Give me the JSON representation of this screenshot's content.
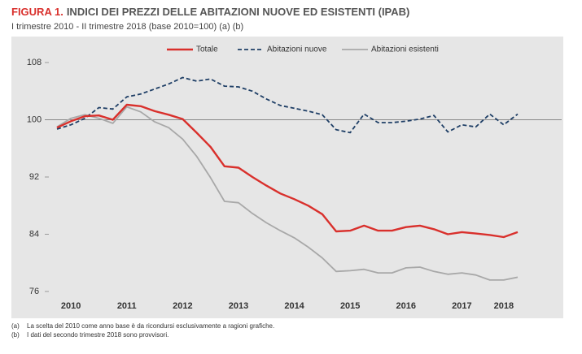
{
  "chart_data": {
    "type": "line",
    "title_prefix": "FIGURA 1.",
    "title": "INDICI DEI PREZZI DELLE ABITAZIONI NUOVE ED ESISTENTI (IPAB)",
    "subtitle": "I trimestre 2010 - II trimestre 2018 (base 2010=100) (a) (b)",
    "categories": [
      null,
      "2010",
      null,
      null,
      null,
      "2011",
      null,
      null,
      null,
      "2012",
      null,
      null,
      null,
      "2013",
      null,
      null,
      null,
      "2014",
      null,
      null,
      null,
      "2015",
      null,
      null,
      null,
      "2016",
      null,
      null,
      null,
      "2017",
      null,
      null,
      "2018",
      null
    ],
    "series": [
      {
        "name": "Totale",
        "color": "#d9302c",
        "style": "solid",
        "values": [
          98.9,
          99.8,
          100.5,
          100.6,
          100.0,
          102.1,
          101.9,
          101.2,
          100.7,
          100.1,
          98.2,
          96.2,
          93.5,
          93.3,
          92.0,
          90.8,
          89.7,
          88.9,
          88.0,
          86.8,
          84.4,
          84.5,
          85.2,
          84.5,
          84.5,
          85.0,
          85.2,
          84.7,
          84.0,
          84.3,
          84.1,
          83.9,
          83.6,
          84.3
        ]
      },
      {
        "name": "Abitazioni nuove",
        "color": "#1f3f66",
        "style": "dashed",
        "values": [
          98.7,
          99.3,
          100.2,
          101.7,
          101.5,
          103.2,
          103.6,
          104.3,
          105.0,
          105.9,
          105.4,
          105.7,
          104.7,
          104.6,
          104.0,
          102.9,
          102.0,
          101.6,
          101.2,
          100.7,
          98.6,
          98.2,
          100.8,
          99.6,
          99.6,
          99.8,
          100.1,
          100.6,
          98.3,
          99.3,
          99.0,
          100.8,
          99.3,
          100.8
        ]
      },
      {
        "name": "Abitazioni esistenti",
        "color": "#a8a8a8",
        "style": "solid",
        "values": [
          99.0,
          100.2,
          100.7,
          100.2,
          99.5,
          101.8,
          101.1,
          99.7,
          98.9,
          97.3,
          94.9,
          91.9,
          88.6,
          88.4,
          86.9,
          85.6,
          84.5,
          83.5,
          82.2,
          80.7,
          78.8,
          78.9,
          79.1,
          78.6,
          78.6,
          79.3,
          79.4,
          78.8,
          78.4,
          78.6,
          78.3,
          77.6,
          77.6,
          78.0
        ]
      }
    ],
    "ylim": [
      76,
      108
    ],
    "yticks": [
      76,
      84,
      92,
      100,
      108
    ],
    "reference_line": 100,
    "legend": "top",
    "notes": [
      {
        "marker": "(a)",
        "text": "La scelta del 2010 come anno base è da ricondursi esclusivamente a ragioni grafiche."
      },
      {
        "marker": "(b)",
        "text": "I dati del secondo trimestre 2018 sono provvisori."
      }
    ]
  }
}
